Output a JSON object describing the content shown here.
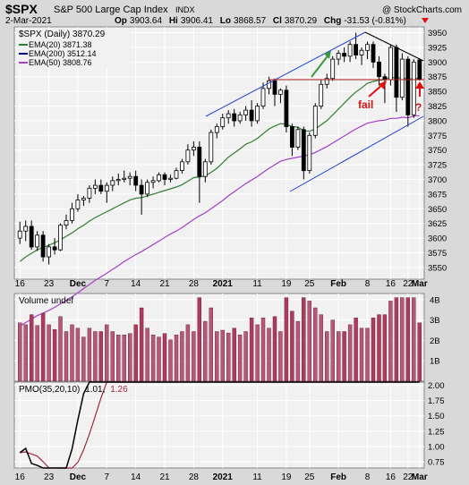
{
  "header": {
    "symbol": "$SPX",
    "name": "S&P 500 Large Cap Index",
    "exchange": "INDX",
    "copyright": "@ StockCharts.com",
    "date": "2-Mar-2021",
    "op_label": "Op",
    "op": "3903.64",
    "hi_label": "Hi",
    "hi": "3906.41",
    "lo_label": "Lo",
    "lo": "3868.57",
    "cl_label": "Cl",
    "cl": "3870.29",
    "chg_label": "Chg",
    "chg": "-31.53 (-0.81%)"
  },
  "legend": {
    "price": "$SPX (Daily) 3870.29",
    "ema20": "EMA(20) 3871.38",
    "ema200": "EMA(200) 3512.14",
    "ema50": "EMA(50) 3808.76",
    "volume": "Volume undef",
    "pmo_prefix": "PMO(35,20,10)",
    "pmo_v1": "1.01",
    "pmo_v2": "1.26"
  },
  "annotations": {
    "fail": "fail",
    "question": "?"
  },
  "colors": {
    "bg_outer": "#d9d9d9",
    "panel_bg": "#f1f1f1",
    "grid": "#ffffff",
    "candle_up": "#ffffff",
    "candle_down": "#000000",
    "ema20": "#2f7f2f",
    "ema50": "#a53fc7",
    "ema200": "#000080",
    "channel": "#1f3fd6",
    "resistance": "#b01818",
    "volume_up": "#b8577a",
    "volume_down": "#b03a5e",
    "pmo": "#000000",
    "pmo_signal": "#a3283a",
    "arrow_green": "#3a9a3a",
    "arrow_red": "#e01010"
  },
  "chart_data": {
    "type": "candlestick",
    "x_tick_labels": [
      "16",
      "23",
      "Dec",
      "7",
      "14",
      "21",
      "28",
      "2021",
      "11",
      "19",
      "25",
      "Feb",
      "8",
      "16",
      "22",
      "Mar"
    ],
    "price_ticks": [
      3550,
      3575,
      3600,
      3625,
      3650,
      3675,
      3700,
      3725,
      3750,
      3775,
      3800,
      3825,
      3850,
      3875,
      3900,
      3925,
      3950
    ],
    "price_ylim": [
      3530,
      3960
    ],
    "volume_ticks": [
      "1B",
      "2B",
      "3B",
      "4B"
    ],
    "volume_ylim": [
      0,
      4.3
    ],
    "pmo_ticks": [
      0.75,
      1.0,
      1.25,
      1.5,
      1.75,
      2.0
    ],
    "pmo_ylim": [
      0.65,
      2.05
    ],
    "candles": [
      [
        3600,
        3628,
        3590,
        3612
      ],
      [
        3612,
        3630,
        3595,
        3620
      ],
      [
        3620,
        3630,
        3580,
        3585
      ],
      [
        3585,
        3612,
        3578,
        3605
      ],
      [
        3605,
        3612,
        3560,
        3568
      ],
      [
        3568,
        3590,
        3555,
        3585
      ],
      [
        3585,
        3600,
        3572,
        3580
      ],
      [
        3580,
        3625,
        3578,
        3622
      ],
      [
        3622,
        3640,
        3615,
        3630
      ],
      [
        3630,
        3660,
        3625,
        3650
      ],
      [
        3650,
        3675,
        3645,
        3665
      ],
      [
        3665,
        3672,
        3655,
        3668
      ],
      [
        3668,
        3690,
        3660,
        3685
      ],
      [
        3685,
        3700,
        3675,
        3690
      ],
      [
        3690,
        3700,
        3675,
        3680
      ],
      [
        3680,
        3695,
        3660,
        3690
      ],
      [
        3690,
        3705,
        3680,
        3698
      ],
      [
        3698,
        3710,
        3690,
        3700
      ],
      [
        3700,
        3715,
        3695,
        3702
      ],
      [
        3702,
        3712,
        3690,
        3705
      ],
      [
        3705,
        3715,
        3680,
        3690
      ],
      [
        3690,
        3700,
        3640,
        3675
      ],
      [
        3675,
        3700,
        3670,
        3695
      ],
      [
        3695,
        3705,
        3685,
        3698
      ],
      [
        3698,
        3712,
        3695,
        3708
      ],
      [
        3708,
        3712,
        3690,
        3700
      ],
      [
        3700,
        3708,
        3695,
        3702
      ],
      [
        3702,
        3720,
        3700,
        3715
      ],
      [
        3715,
        3735,
        3710,
        3730
      ],
      [
        3730,
        3760,
        3725,
        3750
      ],
      [
        3750,
        3765,
        3740,
        3755
      ],
      [
        3755,
        3765,
        3660,
        3705
      ],
      [
        3705,
        3735,
        3695,
        3730
      ],
      [
        3730,
        3785,
        3725,
        3780
      ],
      [
        3780,
        3795,
        3770,
        3790
      ],
      [
        3790,
        3812,
        3785,
        3805
      ],
      [
        3805,
        3818,
        3795,
        3812
      ],
      [
        3812,
        3820,
        3790,
        3800
      ],
      [
        3800,
        3815,
        3795,
        3810
      ],
      [
        3810,
        3825,
        3800,
        3818
      ],
      [
        3818,
        3835,
        3790,
        3800
      ],
      [
        3800,
        3830,
        3795,
        3825
      ],
      [
        3825,
        3865,
        3820,
        3855
      ],
      [
        3855,
        3875,
        3845,
        3868
      ],
      [
        3868,
        3872,
        3825,
        3845
      ],
      [
        3845,
        3855,
        3830,
        3852
      ],
      [
        3852,
        3860,
        3780,
        3790
      ],
      [
        3790,
        3795,
        3740,
        3755
      ],
      [
        3755,
        3790,
        3750,
        3785
      ],
      [
        3785,
        3790,
        3700,
        3715
      ],
      [
        3715,
        3780,
        3710,
        3775
      ],
      [
        3775,
        3830,
        3770,
        3825
      ],
      [
        3825,
        3870,
        3820,
        3862
      ],
      [
        3862,
        3880,
        3855,
        3872
      ],
      [
        3872,
        3910,
        3868,
        3905
      ],
      [
        3905,
        3920,
        3895,
        3915
      ],
      [
        3915,
        3925,
        3900,
        3910
      ],
      [
        3910,
        3935,
        3900,
        3930
      ],
      [
        3930,
        3950,
        3905,
        3912
      ],
      [
        3912,
        3925,
        3895,
        3920
      ],
      [
        3920,
        3935,
        3905,
        3930
      ],
      [
        3930,
        3935,
        3890,
        3900
      ],
      [
        3900,
        3910,
        3860,
        3875
      ],
      [
        3875,
        3880,
        3830,
        3870
      ],
      [
        3870,
        3930,
        3860,
        3925
      ],
      [
        3925,
        3930,
        3815,
        3840
      ],
      [
        3840,
        3915,
        3835,
        3905
      ],
      [
        3905,
        3910,
        3790,
        3810
      ],
      [
        3810,
        3905,
        3805,
        3900
      ],
      [
        3903.64,
        3906.41,
        3868.57,
        3870.29
      ]
    ],
    "ema20": [
      3560,
      3568,
      3574,
      3580,
      3584,
      3588,
      3592,
      3597,
      3603,
      3609,
      3616,
      3622,
      3629,
      3635,
      3640,
      3645,
      3650,
      3655,
      3660,
      3665,
      3668,
      3669,
      3672,
      3675,
      3678,
      3681,
      3684,
      3687,
      3691,
      3697,
      3703,
      3704,
      3706,
      3712,
      3719,
      3728,
      3738,
      3745,
      3752,
      3760,
      3764,
      3770,
      3778,
      3786,
      3791,
      3795,
      3794,
      3790,
      3789,
      3783,
      3782,
      3786,
      3793,
      3800,
      3810,
      3820,
      3830,
      3840,
      3849,
      3856,
      3864,
      3867,
      3869,
      3870,
      3875,
      3872,
      3874,
      3870,
      3873,
      3871.38
    ],
    "ema50": [
      3450,
      3456,
      3462,
      3468,
      3472,
      3477,
      3482,
      3488,
      3494,
      3500,
      3507,
      3514,
      3521,
      3528,
      3534,
      3540,
      3547,
      3553,
      3560,
      3566,
      3572,
      3577,
      3583,
      3589,
      3595,
      3601,
      3607,
      3612,
      3618,
      3625,
      3632,
      3638,
      3643,
      3650,
      3657,
      3664,
      3672,
      3679,
      3686,
      3693,
      3699,
      3705,
      3712,
      3719,
      3725,
      3731,
      3734,
      3736,
      3738,
      3740,
      3742,
      3746,
      3751,
      3756,
      3762,
      3768,
      3774,
      3780,
      3786,
      3791,
      3796,
      3798,
      3800,
      3801,
      3804,
      3804,
      3806,
      3805,
      3808,
      3808.76
    ]
  }
}
